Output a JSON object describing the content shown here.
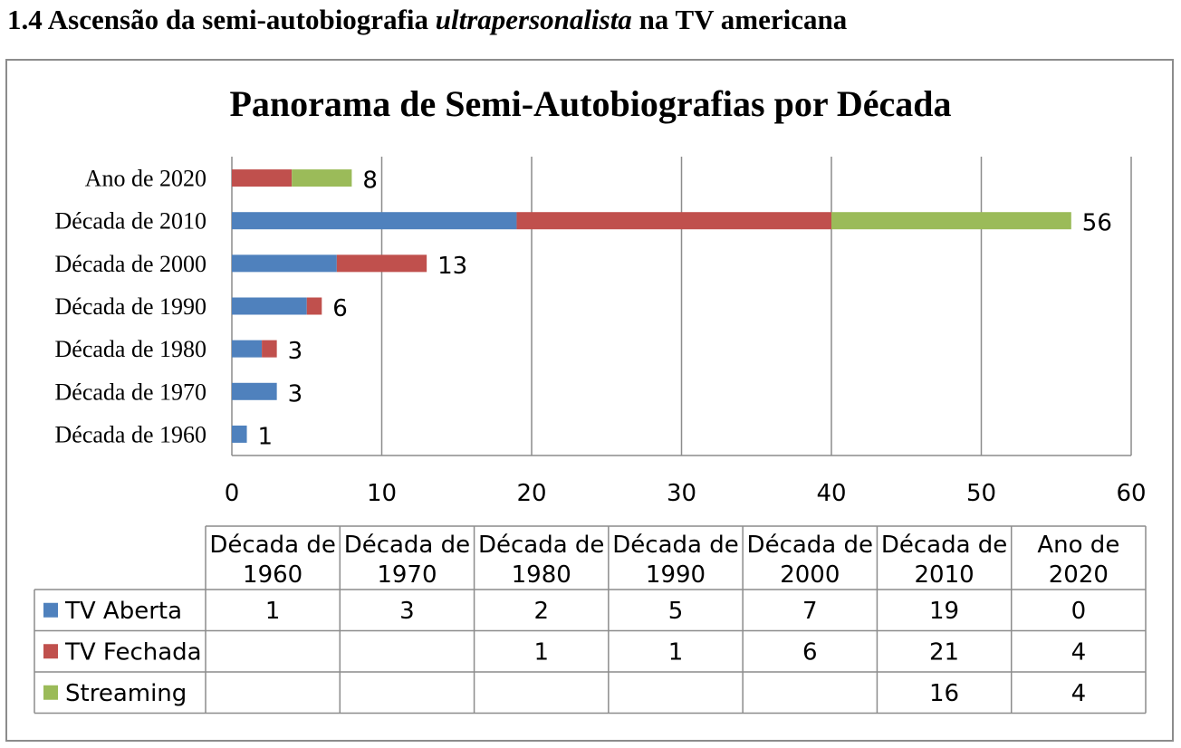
{
  "heading": {
    "prefix": "1.4 Ascensão da semi-autobiografia ",
    "emphasis": "ultrapersonalista",
    "suffix": " na TV americana"
  },
  "chart_data": {
    "type": "bar",
    "orientation": "horizontal",
    "stacked": true,
    "title": "Panorama de Semi-Autobiografias por Década",
    "categories": [
      "Década de 1960",
      "Década de 1970",
      "Década de 1980",
      "Década de 1990",
      "Década de 2000",
      "Década de 2010",
      "Ano de 2020"
    ],
    "series": [
      {
        "name": "TV Aberta",
        "color": "#4f81bd",
        "values": [
          1,
          3,
          2,
          5,
          7,
          19,
          0
        ]
      },
      {
        "name": "TV Fechada",
        "color": "#c0504d",
        "values": [
          null,
          null,
          1,
          1,
          6,
          21,
          4
        ]
      },
      {
        "name": "Streaming",
        "color": "#9bbb59",
        "values": [
          null,
          null,
          null,
          null,
          null,
          16,
          4
        ]
      }
    ],
    "totals": [
      1,
      3,
      3,
      6,
      13,
      56,
      8
    ],
    "xlim": [
      0,
      60
    ],
    "xticks": [
      0,
      10,
      20,
      30,
      40,
      50,
      60
    ],
    "grid": true,
    "legend": "data-table-below",
    "table_headers": [
      [
        "Década de",
        "1960"
      ],
      [
        "Década de",
        "1970"
      ],
      [
        "Década de",
        "1980"
      ],
      [
        "Década de",
        "1990"
      ],
      [
        "Década de",
        "2000"
      ],
      [
        "Década de",
        "2010"
      ],
      [
        "Ano de",
        "2020"
      ]
    ]
  }
}
